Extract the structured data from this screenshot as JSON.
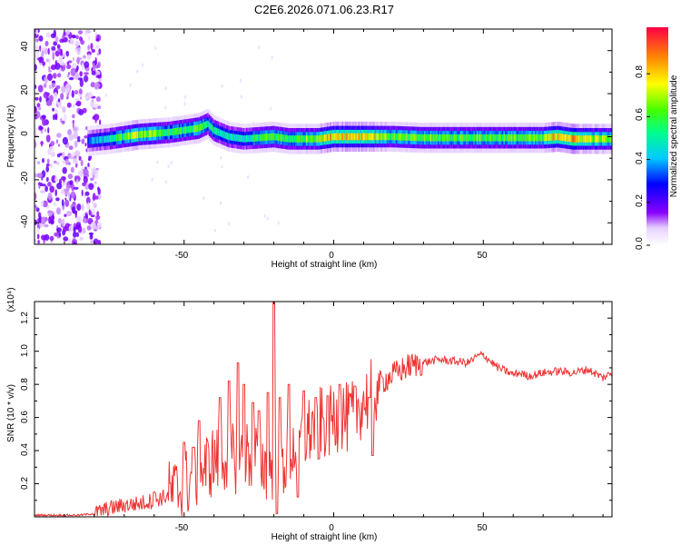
{
  "title": "C2E6.2026.071.06.23.R17",
  "chart_data": [
    {
      "type": "heatmap",
      "xlabel": "Height of straight line (km)",
      "ylabel": "Frequency (Hz)",
      "xlim": [
        -100,
        93
      ],
      "ylim": [
        -50,
        50
      ],
      "x_ticks": [
        "-50",
        "0",
        "50"
      ],
      "y_ticks": [
        "40",
        "20",
        "0",
        "-20",
        "-40"
      ],
      "colorbar": {
        "label": "Normalized spectral amplitude",
        "range": [
          0,
          1
        ],
        "ticks": [
          "0.0",
          "0.2",
          "0.4",
          "0.6",
          "0.8"
        ]
      },
      "noise_region_x": [
        -100,
        -80
      ],
      "band": {
        "x": [
          -82,
          -75,
          -70,
          -65,
          -60,
          -55,
          -50,
          -45,
          -42,
          -40,
          -35,
          -30,
          -25,
          -20,
          -15,
          -10,
          -5,
          0,
          10,
          20,
          30,
          40,
          50,
          60,
          70,
          75,
          80,
          93
        ],
        "center_hz": [
          -2,
          -1,
          0,
          1,
          1.5,
          2,
          3,
          4,
          6,
          3,
          0,
          -1,
          -0.5,
          0,
          -1,
          -1,
          -1,
          0,
          0,
          0,
          -0.5,
          -0.5,
          -0.5,
          -0.5,
          -0.5,
          0,
          -1,
          -1
        ],
        "amplitude": [
          0.35,
          0.45,
          0.6,
          0.7,
          0.6,
          0.55,
          0.55,
          0.6,
          0.5,
          0.5,
          0.45,
          0.45,
          0.55,
          0.6,
          0.55,
          0.6,
          0.7,
          0.8,
          0.8,
          0.6,
          0.6,
          0.6,
          0.6,
          0.6,
          0.6,
          0.85,
          0.8,
          0.6
        ]
      }
    },
    {
      "type": "line",
      "xlabel": "Height of straight line (km)",
      "ylabel": "SNR (10 * v/v)",
      "exponent_label": "(x10⁴)",
      "xlim": [
        -100,
        93
      ],
      "ylim": [
        0,
        1.3
      ],
      "x_ticks": [
        "-50",
        "0",
        "50"
      ],
      "y_ticks": [
        "0.2",
        "0.4",
        "0.6",
        "0.8",
        "1.0",
        "1.2"
      ],
      "series": [
        {
          "color": "#ee3333",
          "x": [
            -100,
            -85,
            -80,
            -75,
            -70,
            -65,
            -60,
            -55,
            -52,
            -48,
            -45,
            -42,
            -40,
            -38,
            -35,
            -32,
            -30,
            -28,
            -25,
            -23,
            -21,
            -20,
            -19,
            -18,
            -15,
            -12,
            -10,
            -8,
            -5,
            -2,
            0,
            3,
            5,
            8,
            10,
            13,
            15,
            20,
            25,
            30,
            35,
            40,
            45,
            48,
            50,
            53,
            55,
            60,
            62,
            65,
            70,
            75,
            80,
            85,
            88,
            90,
            93
          ],
          "y": [
            0.01,
            0.01,
            0.02,
            0.05,
            0.07,
            0.08,
            0.1,
            0.13,
            0.16,
            0.22,
            0.27,
            0.31,
            0.34,
            0.36,
            0.37,
            0.35,
            0.38,
            0.37,
            0.38,
            0.3,
            0.32,
            0.3,
            0.35,
            0.28,
            0.38,
            0.45,
            0.48,
            0.52,
            0.58,
            0.55,
            0.6,
            0.62,
            0.58,
            0.66,
            0.7,
            0.74,
            0.8,
            0.86,
            0.91,
            0.93,
            0.95,
            0.94,
            0.93,
            0.97,
            0.98,
            0.93,
            0.9,
            0.86,
            0.87,
            0.85,
            0.87,
            0.88,
            0.87,
            0.89,
            0.86,
            0.84,
            0.87
          ]
        }
      ],
      "spikes": [
        {
          "x": -60,
          "y": 0.15
        },
        {
          "x": -50,
          "y": 0.45
        },
        {
          "x": -47,
          "y": 0.42
        },
        {
          "x": -45,
          "y": 0.58
        },
        {
          "x": -38,
          "y": 0.72
        },
        {
          "x": -35,
          "y": 0.82
        },
        {
          "x": -32,
          "y": 0.93
        },
        {
          "x": -30,
          "y": 0.8
        },
        {
          "x": -27,
          "y": 0.69
        },
        {
          "x": -25,
          "y": 0.64
        },
        {
          "x": -22,
          "y": 0.75
        },
        {
          "x": -20,
          "y": 1.32
        },
        {
          "x": -18,
          "y": 0.72
        },
        {
          "x": -15,
          "y": 0.8
        },
        {
          "x": -12,
          "y": 0.78
        },
        {
          "x": -10,
          "y": 0.76
        },
        {
          "x": -6,
          "y": 0.72
        },
        {
          "x": -2,
          "y": 0.73
        },
        {
          "x": 2,
          "y": 0.8
        },
        {
          "x": 7,
          "y": 0.79
        },
        {
          "x": 12,
          "y": 0.72
        }
      ],
      "dips": [
        {
          "x": -19,
          "y": 0.02
        },
        {
          "x": -12,
          "y": 0.12
        },
        {
          "x": -5,
          "y": 0.35
        },
        {
          "x": 13,
          "y": 0.37
        }
      ]
    }
  ]
}
